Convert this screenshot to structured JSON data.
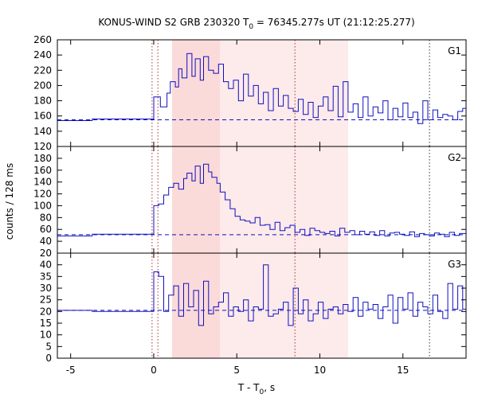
{
  "chart_data": {
    "type": "line",
    "title": "KONUS-WIND S2 GRB 230320 T",
    "title_sub": "0",
    "title_rest": " = 76345.277s UT (21:12:25.277)",
    "xlabel_main": "T - T",
    "xlabel_sub": "0",
    "xlabel_rest": ", s",
    "ylabel": "counts / 128 ms",
    "xlim": [
      -5.8,
      18.8
    ],
    "xticks": [
      -5,
      0,
      5,
      10,
      15
    ],
    "shaded_regions": [
      {
        "x0": 1.1,
        "x1": 4.0,
        "color": "#fbdada"
      },
      {
        "x0": 4.0,
        "x1": 11.7,
        "color": "#fdeaea"
      }
    ],
    "vlines_red": [
      -0.1,
      0.25,
      8.5
    ],
    "vlines_black": [
      16.6
    ],
    "series": [
      {
        "name": "G1",
        "ylim": [
          120,
          260
        ],
        "yticks": [
          120,
          140,
          160,
          180,
          200,
          220,
          240,
          260
        ],
        "background": 155,
        "x": [
          -5.8,
          -3.7,
          -3.7,
          0.0,
          0.0,
          0.4,
          0.8,
          1.0,
          1.3,
          1.5,
          1.7,
          2.0,
          2.3,
          2.5,
          2.8,
          3.0,
          3.3,
          3.6,
          3.9,
          4.2,
          4.5,
          4.8,
          5.1,
          5.4,
          5.7,
          6.0,
          6.3,
          6.6,
          6.9,
          7.2,
          7.5,
          7.8,
          8.1,
          8.4,
          8.7,
          9.0,
          9.3,
          9.6,
          9.9,
          10.2,
          10.5,
          10.8,
          11.1,
          11.4,
          11.7,
          12.0,
          12.3,
          12.6,
          12.9,
          13.2,
          13.5,
          13.8,
          14.1,
          14.4,
          14.7,
          15.0,
          15.3,
          15.6,
          15.9,
          16.2,
          16.5,
          16.8,
          17.1,
          17.4,
          17.7,
          18.0,
          18.3,
          18.6,
          18.8
        ],
        "y": [
          154,
          154,
          156,
          156,
          185,
          172,
          190,
          205,
          198,
          222,
          210,
          242,
          212,
          235,
          207,
          238,
          220,
          216,
          228,
          205,
          196,
          207,
          180,
          215,
          186,
          200,
          176,
          191,
          167,
          196,
          173,
          187,
          170,
          166,
          182,
          162,
          178,
          158,
          173,
          185,
          167,
          199,
          159,
          205,
          165,
          176,
          158,
          185,
          160,
          172,
          164,
          180,
          155,
          170,
          159,
          177,
          158,
          165,
          150,
          180,
          155,
          168,
          158,
          162,
          160,
          155,
          166,
          170,
          170
        ]
      },
      {
        "name": "G2",
        "ylim": [
          20,
          200
        ],
        "yticks": [
          20,
          40,
          60,
          80,
          100,
          120,
          140,
          160,
          180
        ],
        "background": 51,
        "x": [
          -5.8,
          -3.7,
          -3.7,
          0.0,
          0.0,
          0.3,
          0.6,
          0.9,
          1.2,
          1.5,
          1.8,
          2.0,
          2.3,
          2.5,
          2.8,
          3.0,
          3.3,
          3.5,
          3.8,
          4.0,
          4.3,
          4.6,
          4.9,
          5.2,
          5.5,
          5.8,
          6.1,
          6.4,
          6.7,
          7.0,
          7.3,
          7.6,
          7.9,
          8.2,
          8.5,
          8.8,
          9.1,
          9.4,
          9.7,
          10.0,
          10.3,
          10.6,
          10.9,
          11.2,
          11.5,
          11.8,
          12.1,
          12.4,
          12.7,
          13.0,
          13.3,
          13.6,
          13.9,
          14.2,
          14.5,
          14.8,
          15.1,
          15.4,
          15.7,
          16.0,
          16.3,
          16.6,
          16.9,
          17.2,
          17.5,
          17.8,
          18.1,
          18.4,
          18.8
        ],
        "y": [
          49,
          49,
          52,
          52,
          100,
          103,
          118,
          131,
          138,
          128,
          146,
          155,
          142,
          167,
          138,
          170,
          157,
          148,
          138,
          123,
          110,
          95,
          82,
          76,
          74,
          71,
          80,
          67,
          68,
          60,
          72,
          58,
          63,
          67,
          55,
          60,
          50,
          62,
          58,
          55,
          53,
          57,
          49,
          62,
          55,
          58,
          51,
          57,
          52,
          56,
          50,
          58,
          49,
          54,
          55,
          52,
          50,
          56,
          48,
          53,
          51,
          49,
          54,
          52,
          48,
          55,
          50,
          53,
          53
        ]
      },
      {
        "name": "G3",
        "ylim": [
          0,
          45
        ],
        "yticks": [
          0,
          5,
          10,
          15,
          20,
          25,
          30,
          35,
          40
        ],
        "background": 20.5,
        "x": [
          -5.8,
          -3.7,
          -3.7,
          0.0,
          0.0,
          0.3,
          0.6,
          0.9,
          1.2,
          1.5,
          1.8,
          2.1,
          2.4,
          2.7,
          3.0,
          3.3,
          3.6,
          3.9,
          4.2,
          4.5,
          4.8,
          5.1,
          5.4,
          5.7,
          6.0,
          6.3,
          6.6,
          6.9,
          7.2,
          7.5,
          7.8,
          8.1,
          8.4,
          8.7,
          9.0,
          9.3,
          9.6,
          9.9,
          10.2,
          10.5,
          10.8,
          11.1,
          11.4,
          11.7,
          12.0,
          12.3,
          12.6,
          12.9,
          13.2,
          13.5,
          13.8,
          14.1,
          14.4,
          14.7,
          15.0,
          15.3,
          15.6,
          15.9,
          16.2,
          16.5,
          16.8,
          17.1,
          17.4,
          17.7,
          18.0,
          18.3,
          18.6,
          18.8
        ],
        "y": [
          20.5,
          20.5,
          20,
          20,
          37,
          35,
          20,
          27,
          31,
          18,
          32,
          22,
          29,
          14,
          33,
          19,
          22,
          24,
          28,
          18,
          22,
          20,
          25,
          16,
          22,
          21,
          40,
          18,
          19,
          21,
          24,
          14,
          30,
          19,
          25,
          16,
          19,
          24,
          17,
          21,
          22,
          19,
          23,
          20,
          26,
          18,
          24,
          21,
          23,
          17,
          22,
          27,
          15,
          26,
          21,
          28,
          18,
          24,
          22,
          19,
          27,
          20,
          17,
          32,
          21,
          31,
          21,
          21
        ]
      }
    ]
  }
}
